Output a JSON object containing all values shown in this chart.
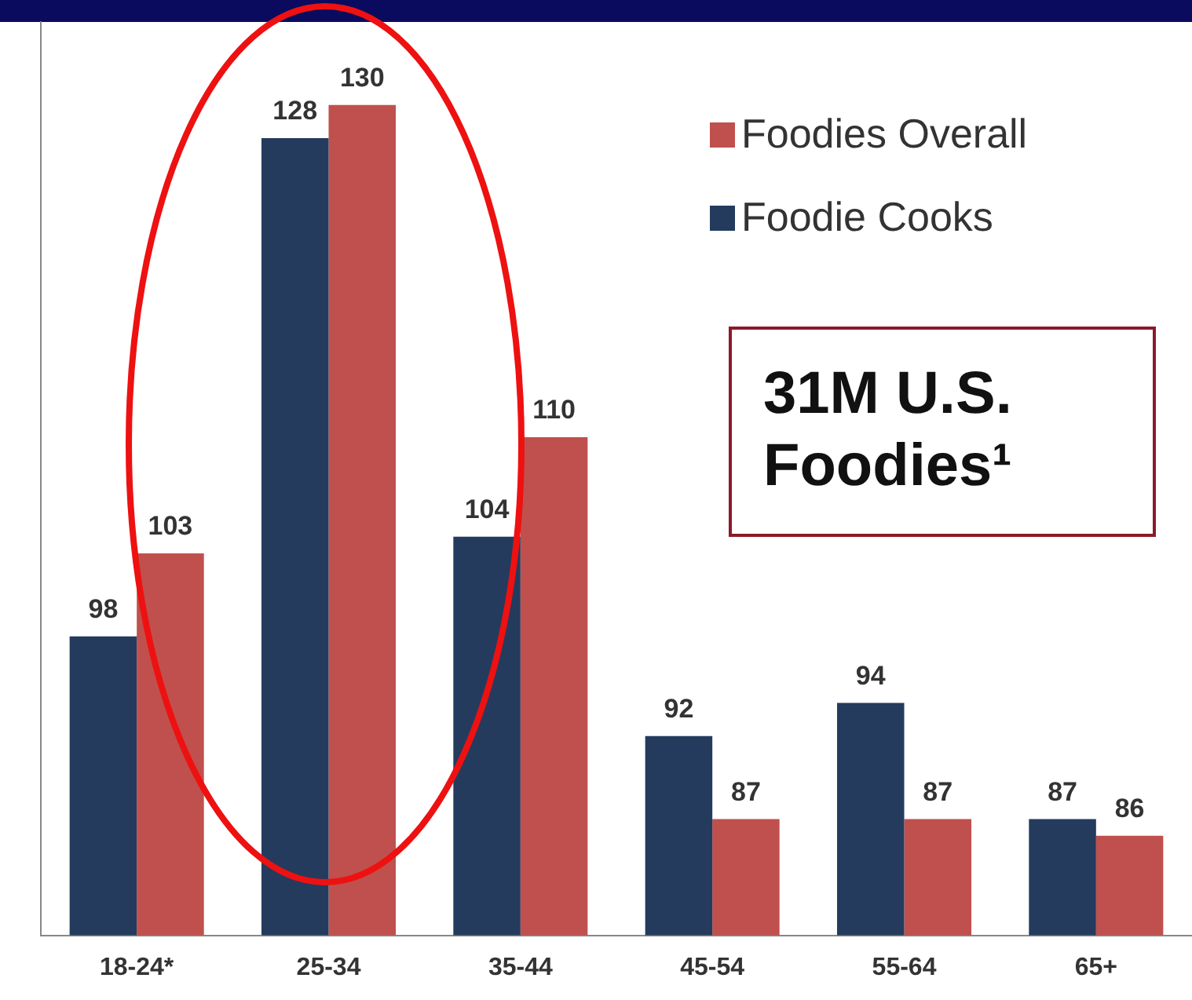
{
  "chart_data": {
    "type": "bar",
    "categories": [
      "18-24*",
      "25-34",
      "35-44",
      "45-54",
      "55-64",
      "65+"
    ],
    "series": [
      {
        "name": "Foodie Cooks",
        "color": "#243b5e",
        "values": [
          98,
          128,
          104,
          92,
          94,
          87
        ]
      },
      {
        "name": "Foodies Overall",
        "color": "#c0504d",
        "values": [
          103,
          130,
          110,
          87,
          87,
          86
        ]
      }
    ],
    "ylim": [
      80,
      135
    ],
    "tick_labels": "x",
    "data_labels": true,
    "legend": "top right",
    "annotations": [
      "31M U.S. Foodies¹"
    ]
  }
}
